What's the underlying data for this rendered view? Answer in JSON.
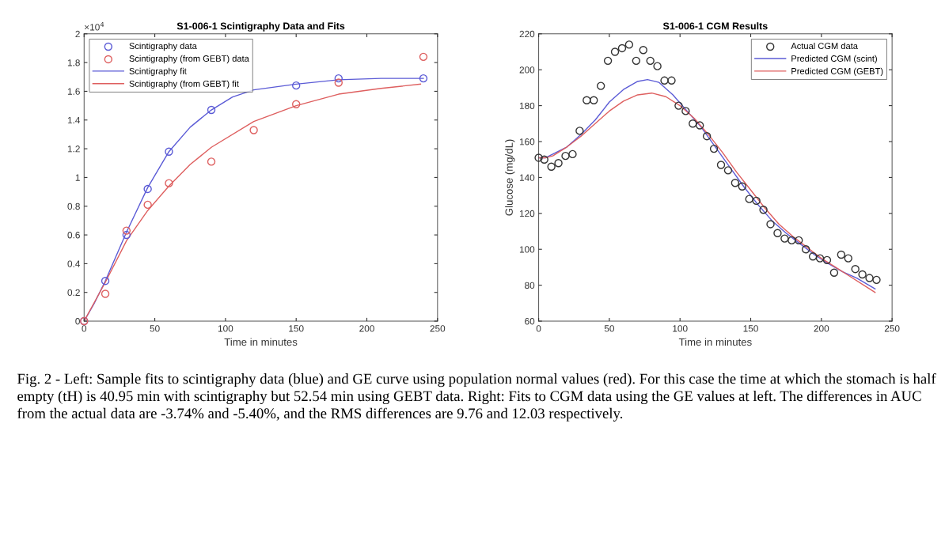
{
  "chart_data": [
    {
      "type": "scatter",
      "title": "S1-006-1 Scintigraphy Data and Fits",
      "xlabel": "Time in minutes",
      "xlim": [
        0,
        250
      ],
      "xticks": [
        0,
        50,
        100,
        150,
        200,
        250
      ],
      "ylim": [
        0,
        2
      ],
      "yticks": [
        0,
        0.2,
        0.4,
        0.6,
        0.8,
        1,
        1.2,
        1.4,
        1.6,
        1.8,
        2
      ],
      "grid": false,
      "legend": "top left",
      "annotations": [
        "×10$^{4}$"
      ],
      "series": [
        {
          "name": "Scintigraphy data",
          "marker": "circle",
          "color": "#5b5bd6",
          "x": [
            0,
            15,
            30,
            45,
            60,
            90,
            150,
            180,
            240
          ],
          "values": [
            0,
            0.28,
            0.6,
            0.92,
            1.18,
            1.47,
            1.64,
            1.69,
            1.69
          ]
        },
        {
          "name": "Scintigraphy (from GEBT) data",
          "marker": "circle",
          "color": "#de5f5f",
          "x": [
            0,
            15,
            30,
            45,
            60,
            90,
            120,
            150,
            180,
            240
          ],
          "values": [
            0,
            0.19,
            0.63,
            0.81,
            0.96,
            1.11,
            1.33,
            1.51,
            1.66,
            1.84
          ]
        },
        {
          "name": "Scintigraphy fit",
          "type": "line",
          "marker": "none",
          "color": "#5b5bd6",
          "x": [
            0,
            7,
            15,
            30,
            45,
            60,
            75,
            90,
            105,
            120,
            150,
            180,
            210,
            240
          ],
          "values": [
            0,
            0.12,
            0.28,
            0.62,
            0.93,
            1.18,
            1.35,
            1.47,
            1.56,
            1.61,
            1.65,
            1.68,
            1.69,
            1.69
          ]
        },
        {
          "name": "Scintigraphy (from GEBT) fit",
          "type": "line",
          "marker": "none",
          "color": "#de5f5f",
          "x": [
            0,
            15,
            30,
            45,
            60,
            75,
            90,
            120,
            150,
            180,
            210,
            238
          ],
          "values": [
            0,
            0.27,
            0.56,
            0.77,
            0.94,
            1.09,
            1.21,
            1.39,
            1.5,
            1.58,
            1.62,
            1.65
          ]
        }
      ]
    },
    {
      "type": "scatter",
      "title": "S1-006-1 CGM Results",
      "xlabel": "Time in minutes",
      "ylabel": "Glucose (mg/dL)",
      "xlim": [
        0,
        250
      ],
      "xticks": [
        0,
        50,
        100,
        150,
        200,
        250
      ],
      "ylim": [
        60,
        220
      ],
      "yticks": [
        60,
        80,
        100,
        120,
        140,
        160,
        180,
        200,
        220
      ],
      "grid": false,
      "legend": "top right",
      "annotations": [
        "Fig. 2 - Left: Sample fits to scintigraphy data (blue) and GE curve using population normal values (red). For this case the time at which the stomach is half empty (tH) is 40.95 min with scintigraphy but 52.54 min using GEBT data. Right: Fits to CGM data using the GE values at left. The differences in AUC from the actual data are -3.74% and -5.40%, and the RMS differences are 9.76 and 12.03 respectively."
      ],
      "series": [
        {
          "name": "Actual CGM data",
          "marker": "circle",
          "color": "#333333",
          "x": [
            0,
            4,
            9,
            14,
            19,
            24,
            29,
            34,
            39,
            44,
            49,
            54,
            59,
            64,
            69,
            74,
            79,
            84,
            89,
            94,
            99,
            104,
            109,
            114,
            119,
            124,
            129,
            134,
            139,
            144,
            149,
            154,
            159,
            164,
            169,
            174,
            179,
            184,
            189,
            194,
            199,
            204,
            209,
            214,
            219,
            224,
            229,
            234,
            239
          ],
          "values": [
            151,
            150,
            146,
            148,
            152,
            153,
            166,
            183,
            183,
            191,
            205,
            210,
            212,
            214,
            205,
            211,
            205,
            202,
            194,
            194,
            180,
            177,
            170,
            169,
            163,
            156,
            147,
            144,
            137,
            135,
            128,
            127,
            122,
            114,
            109,
            106,
            105,
            105,
            100,
            96,
            95,
            94,
            87,
            97,
            95,
            89,
            86,
            84,
            83
          ]
        },
        {
          "name": "Predicted CGM (scint)",
          "type": "line",
          "marker": "none",
          "color": "#5b5bd6",
          "x": [
            0,
            5,
            10,
            20,
            30,
            40,
            50,
            60,
            70,
            77,
            85,
            95,
            105,
            115,
            125,
            135,
            145,
            155,
            165,
            175,
            185,
            195,
            205,
            215,
            225,
            238
          ],
          "values": [
            151,
            151,
            153,
            157,
            164,
            172,
            182,
            189,
            193.5,
            194.5,
            193,
            186,
            177,
            168,
            157,
            146,
            135,
            125,
            116,
            109,
            103,
            97,
            92,
            87.5,
            84,
            78
          ]
        },
        {
          "name": "Predicted CGM (GEBT)",
          "type": "line",
          "marker": "none",
          "color": "#de5f5f",
          "x": [
            0,
            5,
            10,
            20,
            30,
            40,
            50,
            60,
            70,
            80,
            90,
            100,
            110,
            120,
            130,
            140,
            150,
            160,
            170,
            180,
            190,
            200,
            210,
            220,
            230,
            238
          ],
          "values": [
            151,
            151,
            152,
            157,
            163,
            170,
            177,
            182.5,
            186,
            187,
            185,
            180,
            173,
            164,
            154,
            143,
            133,
            123,
            114,
            107,
            101,
            95,
            90,
            85,
            80,
            76
          ]
        }
      ]
    }
  ]
}
